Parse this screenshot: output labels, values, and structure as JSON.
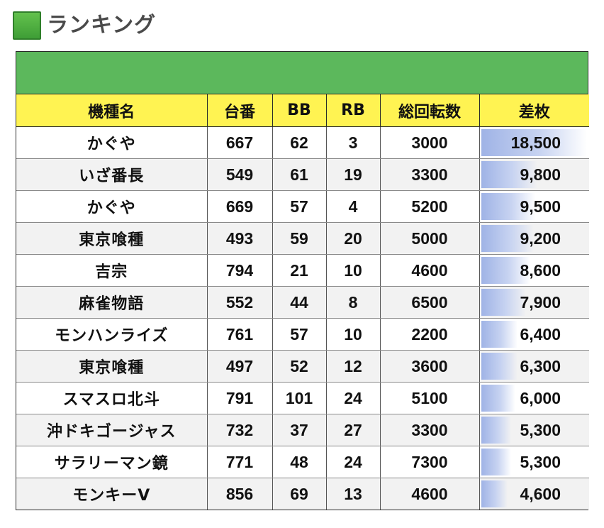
{
  "title": "ランキング",
  "table": {
    "headers": [
      "機種名",
      "台番",
      "BB",
      "RB",
      "総回転数",
      "差枚"
    ],
    "rows": [
      {
        "name": "かぐや",
        "dai": "667",
        "bb": "62",
        "rb": "3",
        "spins": "3000",
        "diff": "18,500",
        "diff_value": 18500
      },
      {
        "name": "いざ番長",
        "dai": "549",
        "bb": "61",
        "rb": "19",
        "spins": "3300",
        "diff": "9,800",
        "diff_value": 9800
      },
      {
        "name": "かぐや",
        "dai": "669",
        "bb": "57",
        "rb": "4",
        "spins": "5200",
        "diff": "9,500",
        "diff_value": 9500
      },
      {
        "name": "東京喰種",
        "dai": "493",
        "bb": "59",
        "rb": "20",
        "spins": "5000",
        "diff": "9,200",
        "diff_value": 9200
      },
      {
        "name": "吉宗",
        "dai": "794",
        "bb": "21",
        "rb": "10",
        "spins": "4600",
        "diff": "8,600",
        "diff_value": 8600
      },
      {
        "name": "麻雀物語",
        "dai": "552",
        "bb": "44",
        "rb": "8",
        "spins": "6500",
        "diff": "7,900",
        "diff_value": 7900
      },
      {
        "name": "モンハンライズ",
        "dai": "761",
        "bb": "57",
        "rb": "10",
        "spins": "2200",
        "diff": "6,400",
        "diff_value": 6400
      },
      {
        "name": "東京喰種",
        "dai": "497",
        "bb": "52",
        "rb": "12",
        "spins": "3600",
        "diff": "6,300",
        "diff_value": 6300
      },
      {
        "name": "スマスロ北斗",
        "dai": "791",
        "bb": "101",
        "rb": "24",
        "spins": "5100",
        "diff": "6,000",
        "diff_value": 6000
      },
      {
        "name": "沖ドキゴージャス",
        "dai": "732",
        "bb": "37",
        "rb": "27",
        "spins": "3300",
        "diff": "5,300",
        "diff_value": 5300
      },
      {
        "name": "サラリーマン鏡",
        "dai": "771",
        "bb": "48",
        "rb": "24",
        "spins": "7300",
        "diff": "5,300",
        "diff_value": 5300
      },
      {
        "name": "モンキーV",
        "dai": "856",
        "bb": "69",
        "rb": "13",
        "spins": "4600",
        "diff": "4,600",
        "diff_value": 4600
      }
    ]
  },
  "colors": {
    "title_icon": "#4caf45",
    "header_band": "#5cb85c",
    "header_row": "#fff352",
    "diff_bar": "#9fb3e6"
  }
}
